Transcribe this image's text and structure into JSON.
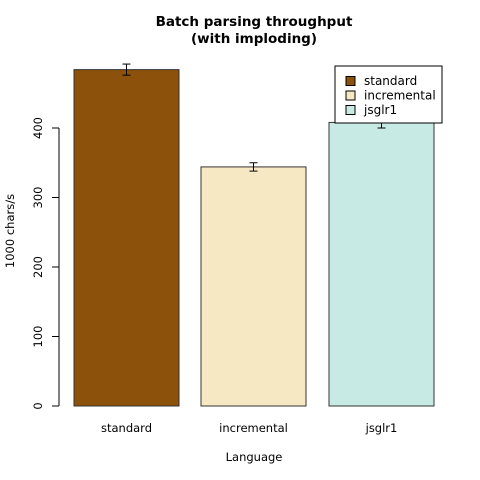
{
  "chart_data": {
    "type": "bar",
    "title": [
      "Batch parsing throughput",
      "(with imploding)"
    ],
    "xlabel": "Language",
    "ylabel": "1000 chars/s",
    "categories": [
      "standard",
      "incremental",
      "jsglr1"
    ],
    "values": [
      484,
      344,
      408
    ],
    "errors": [
      8,
      6,
      8
    ],
    "colors": [
      "#8C510A",
      "#F6E8C3",
      "#C7EAE5"
    ],
    "ylim": [
      0,
      500
    ],
    "yticks": [
      "0",
      "100",
      "200",
      "300",
      "400"
    ],
    "legend": {
      "placement": "top-right",
      "entries": [
        "standard",
        "incremental",
        "jsglr1"
      ]
    },
    "grid": false
  }
}
